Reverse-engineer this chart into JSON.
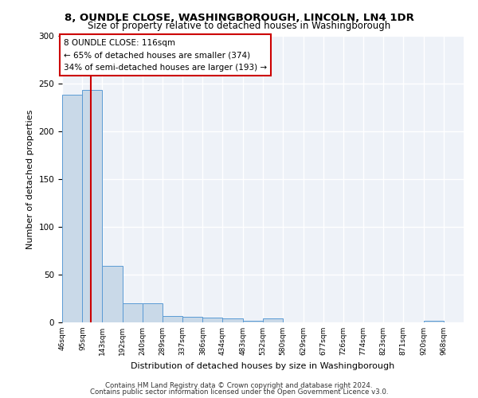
{
  "title1": "8, OUNDLE CLOSE, WASHINGBOROUGH, LINCOLN, LN4 1DR",
  "title2": "Size of property relative to detached houses in Washingborough",
  "xlabel": "Distribution of detached houses by size in Washingborough",
  "ylabel": "Number of detached properties",
  "footer1": "Contains HM Land Registry data © Crown copyright and database right 2024.",
  "footer2": "Contains public sector information licensed under the Open Government Licence v3.0.",
  "annotation_line1": "8 OUNDLE CLOSE: 116sqm",
  "annotation_line2": "← 65% of detached houses are smaller (374)",
  "annotation_line3": "34% of semi-detached houses are larger (193) →",
  "subject_size": 116,
  "bar_edges": [
    46,
    95,
    143,
    192,
    240,
    289,
    337,
    386,
    434,
    483,
    532,
    580,
    629,
    677,
    726,
    774,
    823,
    871,
    920,
    968,
    1017
  ],
  "bar_heights": [
    238,
    243,
    59,
    20,
    20,
    7,
    6,
    5,
    4,
    2,
    4,
    0,
    0,
    0,
    0,
    0,
    0,
    0,
    2,
    0
  ],
  "bar_color": "#c9d9e8",
  "bar_edge_color": "#5b9bd5",
  "vline_color": "#cc0000",
  "vline_x": 116,
  "ylim": [
    0,
    300
  ],
  "yticks": [
    0,
    50,
    100,
    150,
    200,
    250,
    300
  ],
  "bg_color": "#eef2f8",
  "annotation_box_color": "#ffffff",
  "annotation_box_edge": "#cc0000"
}
